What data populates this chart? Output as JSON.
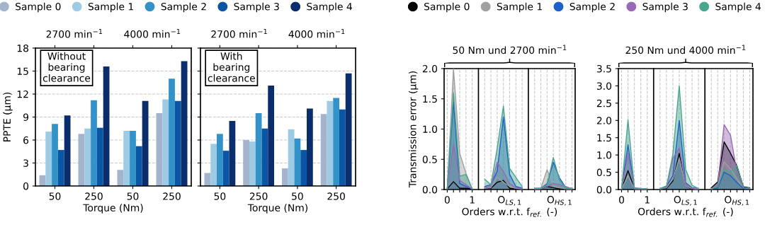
{
  "chart_data": [
    {
      "type": "bar",
      "categories": [
        "50",
        "250",
        "50",
        "250"
      ],
      "ylabel": "PPTE (µm)",
      "xlabel": "Torque (Nm)",
      "ylim": [
        0,
        18
      ],
      "yticks": [
        0,
        3,
        6,
        9,
        12,
        15,
        18
      ],
      "grid": "y",
      "legend": "top",
      "annotations": [
        "Without\nbearing\nclearance",
        "2700 min$^{−1}$",
        "4000 min$^{−1}$"
      ],
      "series": [
        {
          "name": "Sample 0",
          "color": "#a4b4cc",
          "values": [
            1.4,
            6.8,
            2.1,
            9.5
          ]
        },
        {
          "name": "Sample 1",
          "color": "#9dcbe4",
          "values": [
            7.1,
            7.5,
            7.2,
            11.3
          ]
        },
        {
          "name": "Sample 2",
          "color": "#3392c8",
          "values": [
            8.1,
            11.2,
            7.2,
            14.0
          ]
        },
        {
          "name": "Sample 3",
          "color": "#0b56a4",
          "values": [
            4.7,
            7.6,
            5.2,
            11.1
          ]
        },
        {
          "name": "Sample 4",
          "color": "#0c2d6b",
          "values": [
            9.2,
            15.6,
            11.1,
            16.3
          ]
        }
      ]
    },
    {
      "type": "bar",
      "categories": [
        "50",
        "250",
        "50",
        "250"
      ],
      "xlabel": "Torque (Nm)",
      "ylim": [
        0,
        18
      ],
      "yticks": [
        0,
        3,
        6,
        9,
        12,
        15,
        18
      ],
      "grid": "y",
      "tick_labels": "x",
      "annotations": [
        "With\nbearing\nclearance",
        "2700 min$^{−1}$",
        "4000 min$^{−1}$"
      ],
      "series": [
        {
          "color": "#a4b4cc",
          "values": [
            1.7,
            6.0,
            2.3,
            9.4
          ]
        },
        {
          "color": "#9dcbe4",
          "values": [
            5.5,
            5.8,
            7.4,
            11.1
          ]
        },
        {
          "color": "#3392c8",
          "values": [
            6.8,
            9.5,
            6.2,
            11.5
          ]
        },
        {
          "color": "#0b56a4",
          "values": [
            4.6,
            7.5,
            4.7,
            10.0
          ]
        },
        {
          "color": "#0c2d6b",
          "values": [
            8.5,
            13.1,
            10.1,
            14.7
          ]
        }
      ]
    },
    {
      "type": "area",
      "title": "50 Nm und 2700 min$^{−1}$",
      "xlabel": "Orders w.r.t. f$_{ref.}$ (-)",
      "ylabel": "Transmission error (µm)",
      "grid": "x",
      "legend": "top",
      "categories": [
        "0",
        null,
        null,
        null,
        "1",
        null,
        null,
        null,
        null,
        null,
        "O$_{LS,1}$",
        null,
        null,
        null,
        null,
        null,
        null,
        null,
        "O$_{HS,1}$",
        null,
        null
      ],
      "ylim": [
        0,
        2.0
      ],
      "yticks": [
        {
          "value": 0,
          "label": "0.0"
        },
        0.5,
        {
          "value": 1,
          "label": "1.0"
        },
        1.5,
        {
          "value": 2,
          "label": "2.0"
        }
      ],
      "series": [
        {
          "name": "Sample 0",
          "color": "#000000",
          "values": [
            0.01,
            0.13,
            0.02,
            0.02,
            0.01,
            null,
            0.01,
            0.02,
            0.12,
            0.15,
            0.02,
            0.01,
            0.01,
            null,
            0.01,
            0.01,
            0.05,
            0.03,
            0.01,
            0.01,
            0.01
          ]
        },
        {
          "name": "Sample 1",
          "color": "#a0a0a0",
          "values": [
            0.01,
            2.0,
            0.6,
            0.27,
            0.01,
            null,
            0.02,
            0.03,
            0.2,
            0.12,
            0.05,
            0.02,
            0.01,
            null,
            0.02,
            0.02,
            0.33,
            0.05,
            0.03,
            0.01,
            0.01
          ]
        },
        {
          "name": "Sample 2",
          "color": "#1f5fc8",
          "values": [
            0.01,
            1.45,
            0.1,
            0.05,
            0.01,
            null,
            0.05,
            0.08,
            0.3,
            1.2,
            0.25,
            0.05,
            0.02,
            null,
            0.01,
            0.02,
            0.1,
            0.45,
            0.19,
            0.03,
            0.02
          ]
        },
        {
          "name": "Sample 3",
          "color": "#9a6bb5",
          "values": [
            0.01,
            0.75,
            0.15,
            0.08,
            0.01,
            null,
            0.03,
            0.05,
            0.45,
            0.3,
            0.1,
            0.03,
            0.01,
            null,
            0.01,
            0.01,
            0.05,
            0.1,
            0.08,
            0.05,
            0.01
          ]
        },
        {
          "name": "Sample 4",
          "color": "#4aa58f",
          "values": [
            0.01,
            1.6,
            0.22,
            0.25,
            0.01,
            null,
            0.17,
            0.08,
            0.68,
            1.38,
            0.35,
            0.2,
            0.05,
            null,
            0.02,
            0.02,
            0.08,
            0.53,
            0.15,
            0.03,
            0.02
          ]
        }
      ]
    },
    {
      "type": "area",
      "title": "250 Nm und 4000 min$^{−1}$",
      "xlabel": "Orders w.r.t. f$_{ref.}$ (-)",
      "grid": "x",
      "categories": [
        "0",
        null,
        null,
        null,
        "1",
        null,
        null,
        null,
        null,
        null,
        "O$_{LS,1}$",
        null,
        null,
        null,
        null,
        null,
        null,
        null,
        "O$_{HS,1}$",
        null,
        null
      ],
      "ylim": [
        0,
        3.5
      ],
      "yticks": [
        {
          "value": 0,
          "label": "0.0"
        },
        0.5,
        {
          "value": 1,
          "label": "1.0"
        },
        1.5,
        {
          "value": 2,
          "label": "2.0"
        },
        2.5,
        {
          "value": 3,
          "label": "3.0"
        },
        3.5
      ],
      "series": [
        {
          "color": "#000000",
          "values": [
            0.01,
            0.55,
            0.03,
            0.02,
            0.01,
            null,
            0.02,
            0.03,
            0.25,
            1.05,
            0.1,
            0.02,
            0.01,
            null,
            0.05,
            0.22,
            1.38,
            1.05,
            0.68,
            0.08,
            0.05
          ]
        },
        {
          "color": "#a0a0a0",
          "values": [
            0.01,
            0.4,
            0.02,
            0.02,
            0.01,
            null,
            0.02,
            0.05,
            0.3,
            0.9,
            0.1,
            0.03,
            0.01,
            null,
            0.03,
            0.1,
            0.8,
            0.6,
            0.3,
            0.05,
            0.03
          ]
        },
        {
          "color": "#1f5fc8",
          "values": [
            0.01,
            1.3,
            0.03,
            0.02,
            0.01,
            null,
            0.03,
            0.1,
            0.4,
            2.0,
            0.2,
            0.05,
            0.02,
            null,
            0.02,
            0.05,
            0.5,
            0.4,
            0.2,
            0.03,
            0.02
          ]
        },
        {
          "color": "#9a6bb5",
          "values": [
            0.01,
            1.05,
            0.02,
            0.01,
            0.01,
            null,
            0.02,
            0.05,
            0.9,
            1.2,
            0.15,
            0.04,
            0.01,
            null,
            0.03,
            0.12,
            1.88,
            1.57,
            0.5,
            0.05,
            0.03
          ]
        },
        {
          "color": "#4aa58f",
          "values": [
            0.01,
            2.02,
            0.05,
            0.03,
            0.01,
            null,
            0.03,
            0.08,
            1.02,
            3.0,
            0.58,
            0.12,
            0.03,
            null,
            0.02,
            0.08,
            0.6,
            0.5,
            0.7,
            0.06,
            0.04
          ]
        }
      ]
    }
  ]
}
